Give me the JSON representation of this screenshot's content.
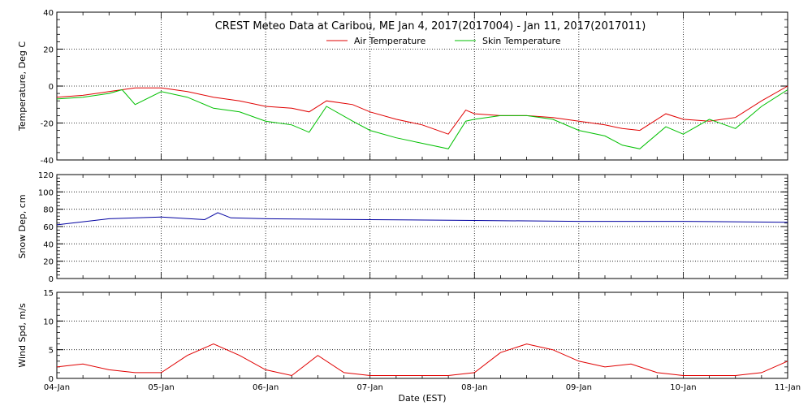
{
  "colors": {
    "air": "#e00000",
    "skin": "#00c000",
    "snow": "#0000a0",
    "wind": "#e00000",
    "axis": "#000000"
  },
  "chart_data": {
    "type": "line",
    "title": "CREST Meteo Data at Caribou, ME   Jan  4, 2017(2017004) - Jan 11, 2017(2017011)",
    "xlabel": "Date (EST)",
    "x_ticks": [
      "04-Jan",
      "05-Jan",
      "06-Jan",
      "07-Jan",
      "08-Jan",
      "09-Jan",
      "10-Jan",
      "11-Jan"
    ],
    "xlim": [
      "2017-01-04T00:00",
      "2017-01-11T00:00"
    ],
    "grid": "dotted vertical at daily ticks, horizontal at major y ticks",
    "legend_placement": "top-center",
    "panels": [
      {
        "ylabel": "Temperature, Deg C",
        "ylim": [
          -40,
          40
        ],
        "y_ticks": [
          "-40",
          "-20",
          "0",
          "20",
          "40"
        ],
        "y_tick_values": [
          -40,
          -20,
          0,
          20,
          40
        ],
        "series": [
          {
            "name": "Air Temperature",
            "color_key": "air",
            "x": [
              "2017-01-04T00:00",
              "2017-01-04T06:00",
              "2017-01-04T12:00",
              "2017-01-04T18:00",
              "2017-01-05T00:00",
              "2017-01-05T06:00",
              "2017-01-05T12:00",
              "2017-01-05T18:00",
              "2017-01-06T00:00",
              "2017-01-06T06:00",
              "2017-01-06T10:00",
              "2017-01-06T14:00",
              "2017-01-06T20:00",
              "2017-01-07T00:00",
              "2017-01-07T06:00",
              "2017-01-07T12:00",
              "2017-01-07T18:00",
              "2017-01-07T22:00",
              "2017-01-08T00:00",
              "2017-01-08T06:00",
              "2017-01-08T12:00",
              "2017-01-08T18:00",
              "2017-01-09T00:00",
              "2017-01-09T06:00",
              "2017-01-09T10:00",
              "2017-01-09T14:00",
              "2017-01-09T20:00",
              "2017-01-10T00:00",
              "2017-01-10T06:00",
              "2017-01-10T12:00",
              "2017-01-10T18:00",
              "2017-01-11T00:00"
            ],
            "y": [
              -6,
              -5,
              -3,
              -1,
              -1,
              -3,
              -6,
              -8,
              -11,
              -12,
              -14,
              -8,
              -10,
              -14,
              -18,
              -21,
              -26,
              -13,
              -15,
              -16,
              -16,
              -17,
              -19,
              -21,
              -23,
              -24,
              -15,
              -18,
              -19,
              -17,
              -8,
              0
            ]
          },
          {
            "name": "Skin Temperature",
            "color_key": "skin",
            "x": [
              "2017-01-04T00:00",
              "2017-01-04T06:00",
              "2017-01-04T12:00",
              "2017-01-04T15:00",
              "2017-01-04T18:00",
              "2017-01-05T00:00",
              "2017-01-05T06:00",
              "2017-01-05T12:00",
              "2017-01-05T18:00",
              "2017-01-06T00:00",
              "2017-01-06T06:00",
              "2017-01-06T10:00",
              "2017-01-06T14:00",
              "2017-01-06T20:00",
              "2017-01-07T00:00",
              "2017-01-07T06:00",
              "2017-01-07T12:00",
              "2017-01-07T18:00",
              "2017-01-07T22:00",
              "2017-01-08T00:00",
              "2017-01-08T06:00",
              "2017-01-08T12:00",
              "2017-01-08T18:00",
              "2017-01-09T00:00",
              "2017-01-09T06:00",
              "2017-01-09T10:00",
              "2017-01-09T14:00",
              "2017-01-09T20:00",
              "2017-01-10T00:00",
              "2017-01-10T06:00",
              "2017-01-10T12:00",
              "2017-01-10T18:00",
              "2017-01-11T00:00"
            ],
            "y": [
              -7,
              -6,
              -4,
              -2,
              -10,
              -3,
              -6,
              -12,
              -14,
              -19,
              -21,
              -25,
              -11,
              -19,
              -24,
              -28,
              -31,
              -34,
              -19,
              -18,
              -16,
              -16,
              -18,
              -24,
              -27,
              -32,
              -34,
              -22,
              -26,
              -18,
              -23,
              -11,
              -2
            ]
          }
        ]
      },
      {
        "ylabel": "Snow Dep, cm",
        "ylim": [
          0,
          120
        ],
        "y_ticks": [
          "0",
          "20",
          "40",
          "60",
          "80",
          "100",
          "120"
        ],
        "y_tick_values": [
          0,
          20,
          40,
          60,
          80,
          100,
          120
        ],
        "series": [
          {
            "color_key": "snow",
            "x": [
              "2017-01-04T00:00",
              "2017-01-04T12:00",
              "2017-01-05T00:00",
              "2017-01-05T10:00",
              "2017-01-05T13:00",
              "2017-01-05T16:00",
              "2017-01-06T00:00",
              "2017-01-07T00:00",
              "2017-01-08T00:00",
              "2017-01-09T00:00",
              "2017-01-10T00:00",
              "2017-01-11T00:00"
            ],
            "y": [
              62,
              69,
              71,
              68,
              76,
              70,
              69,
              68,
              67,
              66,
              66,
              65
            ]
          }
        ]
      },
      {
        "ylabel": "Wind Spd, m/s",
        "ylim": [
          0,
          15
        ],
        "y_ticks": [
          "0",
          "5",
          "10",
          "15"
        ],
        "y_tick_values": [
          0,
          5,
          10,
          15
        ],
        "series": [
          {
            "color_key": "wind",
            "x": [
              "2017-01-04T00:00",
              "2017-01-04T06:00",
              "2017-01-04T12:00",
              "2017-01-04T18:00",
              "2017-01-05T00:00",
              "2017-01-05T06:00",
              "2017-01-05T12:00",
              "2017-01-05T18:00",
              "2017-01-06T00:00",
              "2017-01-06T06:00",
              "2017-01-06T12:00",
              "2017-01-06T18:00",
              "2017-01-07T00:00",
              "2017-01-07T06:00",
              "2017-01-07T12:00",
              "2017-01-07T18:00",
              "2017-01-08T00:00",
              "2017-01-08T06:00",
              "2017-01-08T12:00",
              "2017-01-08T18:00",
              "2017-01-09T00:00",
              "2017-01-09T06:00",
              "2017-01-09T12:00",
              "2017-01-09T18:00",
              "2017-01-10T00:00",
              "2017-01-10T06:00",
              "2017-01-10T12:00",
              "2017-01-10T18:00",
              "2017-01-11T00:00"
            ],
            "y": [
              2,
              2.5,
              1.5,
              1,
              1,
              4,
              6,
              4,
              1.5,
              0.5,
              4,
              1,
              0.5,
              0.5,
              0.5,
              0.5,
              1,
              4.5,
              6,
              5,
              3,
              2,
              2.5,
              1,
              0.5,
              0.5,
              0.5,
              1,
              3
            ]
          }
        ]
      }
    ]
  }
}
